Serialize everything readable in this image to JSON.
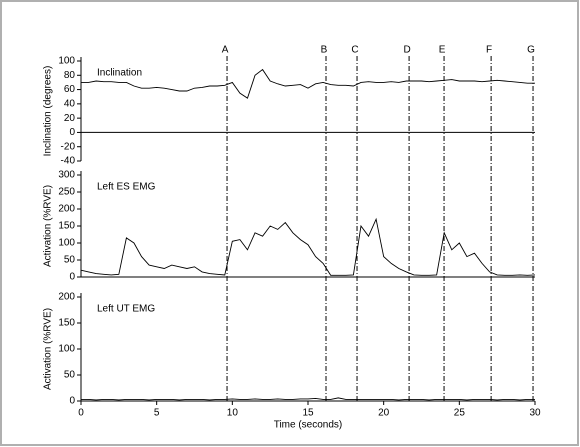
{
  "events": {
    "labels": [
      "A",
      "B",
      "C",
      "D",
      "E",
      "F",
      "G"
    ],
    "x": [
      9.65,
      16.19,
      18.24,
      21.68,
      23.99,
      27.1,
      29.87
    ]
  },
  "chart_data": [
    {
      "type": "line",
      "title": "Inclination",
      "ylabel": "Inclination (degrees)",
      "xlim": [
        0,
        30
      ],
      "ylim": [
        -40,
        100
      ],
      "yticks": [
        -40,
        -20,
        0,
        20,
        40,
        60,
        80,
        100
      ],
      "x": [
        0,
        0.5,
        1,
        1.5,
        2,
        2.5,
        3,
        3.5,
        4,
        4.5,
        5,
        5.5,
        6,
        6.5,
        7,
        7.5,
        8,
        8.5,
        9,
        9.5,
        10,
        10.5,
        11,
        11.5,
        12,
        12.5,
        13,
        13.5,
        14,
        14.5,
        15,
        15.5,
        16,
        16.5,
        17,
        17.5,
        18,
        18.5,
        19,
        19.5,
        20,
        20.5,
        21,
        21.5,
        22,
        22.5,
        23,
        23.5,
        24,
        24.5,
        25,
        25.5,
        26,
        26.5,
        27,
        27.5,
        28,
        28.5,
        29,
        29.5,
        30
      ],
      "series": [
        {
          "color": "#000000",
          "values": [
            70,
            70,
            72,
            71,
            71,
            70,
            70,
            65,
            62,
            62,
            63,
            62,
            60,
            58,
            58,
            62,
            63,
            65,
            65,
            66,
            70,
            55,
            48,
            80,
            88,
            72,
            68,
            65,
            66,
            67,
            62,
            68,
            70,
            67,
            66,
            66,
            65,
            70,
            71,
            70,
            70,
            71,
            70,
            72,
            72,
            72,
            71,
            72,
            73,
            74,
            72,
            72,
            72,
            71,
            72,
            73,
            72,
            71,
            70,
            69,
            69
          ]
        }
      ]
    },
    {
      "type": "line",
      "title": "Left ES EMG",
      "ylabel": "Activation (%RVE)",
      "xlim": [
        0,
        30
      ],
      "ylim": [
        0,
        300
      ],
      "yticks": [
        0,
        50,
        100,
        150,
        200,
        250,
        300
      ],
      "x": [
        0,
        0.5,
        1,
        1.5,
        2,
        2.5,
        3,
        3.5,
        4,
        4.5,
        5,
        5.5,
        6,
        6.5,
        7,
        7.5,
        8,
        8.5,
        9,
        9.5,
        10,
        10.5,
        11,
        11.5,
        12,
        12.5,
        13,
        13.5,
        14,
        14.5,
        15,
        15.5,
        16,
        16.5,
        17,
        17.5,
        18,
        18.5,
        19,
        19.5,
        20,
        20.5,
        21,
        21.5,
        22,
        22.5,
        23,
        23.5,
        24,
        24.5,
        25,
        25.5,
        26,
        26.5,
        27,
        27.5,
        28,
        28.5,
        29,
        29.5,
        30
      ],
      "series": [
        {
          "color": "#000000",
          "values": [
            20,
            15,
            10,
            8,
            6,
            8,
            115,
            100,
            60,
            35,
            30,
            25,
            35,
            30,
            25,
            30,
            15,
            10,
            8,
            6,
            105,
            110,
            80,
            130,
            120,
            150,
            140,
            160,
            130,
            110,
            95,
            60,
            40,
            5,
            5,
            5,
            6,
            150,
            120,
            170,
            60,
            40,
            25,
            15,
            6,
            5,
            5,
            6,
            130,
            80,
            100,
            60,
            70,
            40,
            15,
            6,
            5,
            5,
            6,
            5,
            6
          ]
        }
      ]
    },
    {
      "type": "line",
      "title": "Left UT EMG",
      "ylabel": "Activation (%RVE)",
      "xlabel": "Time (seconds)",
      "xlim": [
        0,
        30
      ],
      "ylim": [
        0,
        200
      ],
      "yticks": [
        0,
        50,
        100,
        150,
        200
      ],
      "xticks": [
        0,
        5,
        10,
        15,
        20,
        25,
        30
      ],
      "x": [
        0,
        0.5,
        1,
        1.5,
        2,
        2.5,
        3,
        3.5,
        4,
        4.5,
        5,
        5.5,
        6,
        6.5,
        7,
        7.5,
        8,
        8.5,
        9,
        9.5,
        10,
        10.5,
        11,
        11.5,
        12,
        12.5,
        13,
        13.5,
        14,
        14.5,
        15,
        15.5,
        16,
        16.5,
        17,
        17.5,
        18,
        18.5,
        19,
        19.5,
        20,
        20.5,
        21,
        21.5,
        22,
        22.5,
        23,
        23.5,
        24,
        24.5,
        25,
        25.5,
        26,
        26.5,
        27,
        27.5,
        28,
        28.5,
        29,
        29.5,
        30
      ],
      "series": [
        {
          "color": "#000000",
          "values": [
            3,
            3,
            2,
            3,
            3,
            2,
            3,
            3,
            3,
            2,
            3,
            3,
            3,
            2,
            3,
            3,
            3,
            2,
            3,
            3,
            4,
            3,
            3,
            4,
            3,
            3,
            4,
            3,
            3,
            4,
            4,
            5,
            3,
            3,
            6,
            3,
            3,
            3,
            3,
            3,
            3,
            3,
            2,
            3,
            3,
            3,
            2,
            3,
            3,
            3,
            3,
            2,
            3,
            3,
            3,
            2,
            3,
            3,
            2,
            3,
            3
          ]
        }
      ]
    }
  ]
}
